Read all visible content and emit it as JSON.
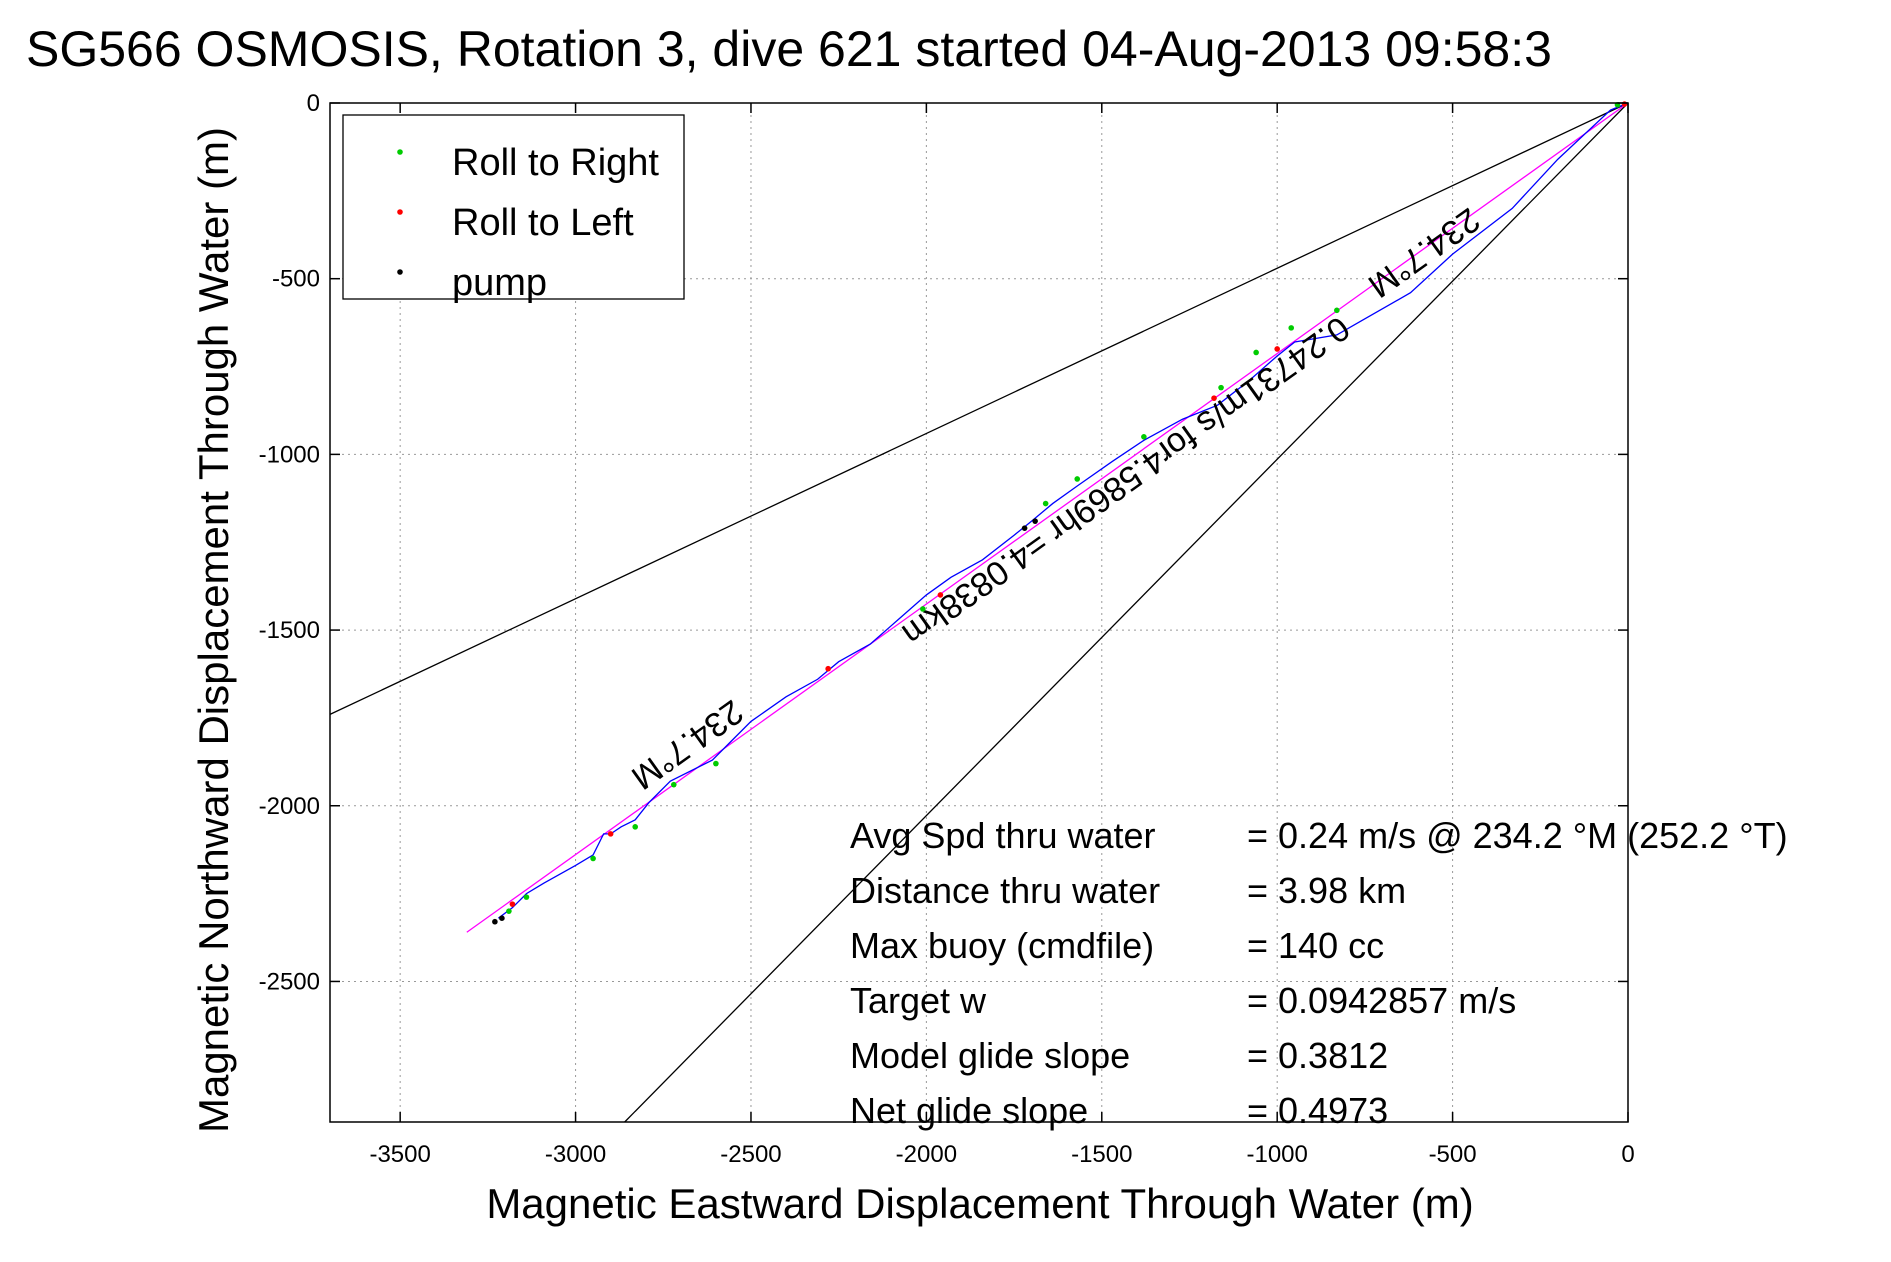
{
  "chart_data": {
    "type": "scatter",
    "title": "SG566 OSMOSIS, Rotation 3, dive 621 started 04-Aug-2013 09:58:3",
    "xlabel": "Magnetic Eastward Displacement Through Water (m)",
    "ylabel": "Magnetic Northward Displacement Through Water (m)",
    "xlim": [
      -3700,
      0
    ],
    "ylim": [
      -2900,
      0
    ],
    "xticks": [
      -3500,
      -3000,
      -2500,
      -2000,
      -1500,
      -1000,
      -500,
      0
    ],
    "yticks": [
      0,
      -500,
      -1000,
      -1500,
      -2000,
      -2500
    ],
    "grid": true,
    "legend_position": "top-left",
    "legend": [
      {
        "label": "Roll to Right",
        "color": "#00cc00"
      },
      {
        "label": "Roll to Left",
        "color": "#ff0000"
      },
      {
        "label": "pump",
        "color": "#000000"
      }
    ],
    "track": {
      "color": "#0000ff",
      "points": [
        [
          0,
          0
        ],
        [
          -50,
          -20
        ],
        [
          -200,
          -160
        ],
        [
          -330,
          -300
        ],
        [
          -500,
          -430
        ],
        [
          -620,
          -540
        ],
        [
          -760,
          -620
        ],
        [
          -830,
          -660
        ],
        [
          -950,
          -680
        ],
        [
          -1000,
          -720
        ],
        [
          -1080,
          -790
        ],
        [
          -1170,
          -860
        ],
        [
          -1270,
          -900
        ],
        [
          -1380,
          -960
        ],
        [
          -1470,
          -1020
        ],
        [
          -1570,
          -1090
        ],
        [
          -1640,
          -1140
        ],
        [
          -1700,
          -1190
        ],
        [
          -1750,
          -1230
        ],
        [
          -1840,
          -1300
        ],
        [
          -1930,
          -1350
        ],
        [
          -2000,
          -1400
        ],
        [
          -2080,
          -1470
        ],
        [
          -2160,
          -1540
        ],
        [
          -2250,
          -1590
        ],
        [
          -2310,
          -1640
        ],
        [
          -2400,
          -1690
        ],
        [
          -2500,
          -1760
        ],
        [
          -2560,
          -1820
        ],
        [
          -2610,
          -1870
        ],
        [
          -2730,
          -1930
        ],
        [
          -2790,
          -1990
        ],
        [
          -2830,
          -2040
        ],
        [
          -2870,
          -2060
        ],
        [
          -2900,
          -2080
        ],
        [
          -2920,
          -2080
        ],
        [
          -2950,
          -2140
        ],
        [
          -3000,
          -2170
        ],
        [
          -3090,
          -2220
        ],
        [
          -3140,
          -2250
        ],
        [
          -3180,
          -2290
        ],
        [
          -3220,
          -2320
        ]
      ]
    },
    "magenta_line": {
      "color": "#ff00ff",
      "points": [
        [
          0,
          0
        ],
        [
          -3310,
          -2360
        ]
      ]
    },
    "cone_lines": {
      "color": "#000000",
      "lines": [
        [
          [
            0,
            0
          ],
          [
            -3700,
            -1740
          ]
        ],
        [
          [
            0,
            0
          ],
          [
            -2860,
            -2900
          ]
        ]
      ]
    },
    "roll_right_points": [
      [
        -30,
        -5
      ],
      [
        -830,
        -590
      ],
      [
        -960,
        -640
      ],
      [
        -1060,
        -710
      ],
      [
        -1160,
        -810
      ],
      [
        -1380,
        -950
      ],
      [
        -1570,
        -1070
      ],
      [
        -1660,
        -1140
      ],
      [
        -2010,
        -1440
      ],
      [
        -2600,
        -1880
      ],
      [
        -2720,
        -1940
      ],
      [
        -2830,
        -2060
      ],
      [
        -2950,
        -2150
      ],
      [
        -3140,
        -2260
      ],
      [
        -3190,
        -2300
      ]
    ],
    "roll_left_points": [
      [
        -10,
        -3
      ],
      [
        -1000,
        -700
      ],
      [
        -1180,
        -840
      ],
      [
        -1960,
        -1400
      ],
      [
        -2280,
        -1610
      ],
      [
        -2900,
        -2080
      ],
      [
        -3180,
        -2280
      ]
    ],
    "pump_points": [
      [
        -1690,
        -1190
      ],
      [
        -1720,
        -1210
      ],
      [
        -3210,
        -2320
      ],
      [
        -3230,
        -2330
      ]
    ],
    "annotations": [
      {
        "text": "234.7°M",
        "x": -600,
        "y": -400
      },
      {
        "text": "0.24731m/s for4.5869hr =4.0838km",
        "x": -1450,
        "y": -1050
      },
      {
        "text": "234.7°M",
        "x": -2700,
        "y": -1800
      }
    ],
    "stats": [
      {
        "label": "Avg Spd thru water",
        "value": "=  0.24 m/s @ 234.2 °M (252.2 °T)"
      },
      {
        "label": "Distance thru water",
        "value": "=  3.98 km"
      },
      {
        "label": "Max buoy (cmdfile)",
        "value": "= 140 cc"
      },
      {
        "label": "Target w",
        "value": "= 0.0942857 m/s"
      },
      {
        "label": "Model glide slope",
        "value": "= 0.3812"
      },
      {
        "label": "Net glide slope",
        "value": "= 0.4973"
      }
    ]
  }
}
